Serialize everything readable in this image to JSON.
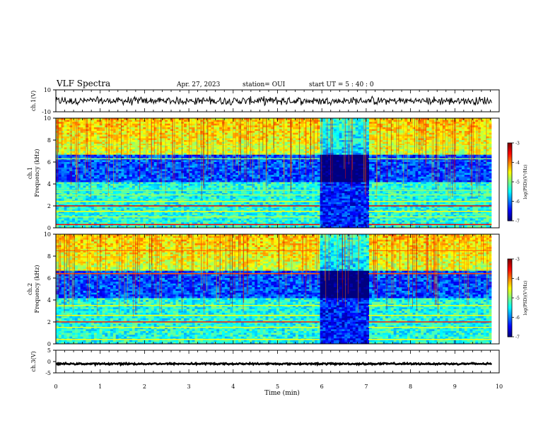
{
  "header": {
    "title": "VLF Spectra",
    "date": "Apr. 27, 2023",
    "station": "station= OUI",
    "start": "start  UT  =   5  : 40 : 0"
  },
  "chart_data": [
    {
      "type": "line",
      "name": "ch1-waveform",
      "ylabel": "ch.1(V)",
      "ylim": [
        -10,
        10
      ],
      "y_ticks": [
        "10",
        "-10"
      ],
      "xlim": [
        0,
        10
      ],
      "x_end": 9.83,
      "baseline": 0,
      "amplitude": 3
    },
    {
      "type": "heatmap",
      "name": "ch1-spectrogram",
      "ylabel": "ch.1\nFrequency (kHz)",
      "ylim": [
        0,
        10
      ],
      "y_ticks": [
        "0",
        "2",
        "4",
        "6",
        "8",
        "10"
      ],
      "xlim": [
        0,
        10
      ],
      "x_end": 9.83,
      "colorbar": {
        "label": "log(PSD)(V²/Hz)",
        "ticks": [
          "-3",
          "-4",
          "-5",
          "-6",
          "-7"
        ],
        "range": [
          -7,
          -3
        ]
      },
      "gap": [
        5.95,
        7.05
      ],
      "bands": [
        {
          "f": 0.3,
          "level": -3.5
        },
        {
          "f": 1.0,
          "level": -4.8
        },
        {
          "f": 1.5,
          "level": -4.5
        },
        {
          "f": 2.0,
          "level": -3.4
        },
        {
          "f": 2.4,
          "level": -4.6
        },
        {
          "f": 3.0,
          "level": -4.9
        },
        {
          "f": 3.4,
          "level": -5.0
        },
        {
          "f": 6.3,
          "level": -5.0
        },
        {
          "f": 7.5,
          "level": -4.8
        }
      ]
    },
    {
      "type": "heatmap",
      "name": "ch2-spectrogram",
      "ylabel": "ch.2\nFrequency (kHz)",
      "ylim": [
        0,
        10
      ],
      "y_ticks": [
        "0",
        "2",
        "4",
        "6",
        "8",
        "10"
      ],
      "xlim": [
        0,
        10
      ],
      "x_end": 9.83,
      "colorbar": {
        "label": "log(PSD)(V²/Hz)",
        "ticks": [
          "-3",
          "-4",
          "-5",
          "-6",
          "-7"
        ],
        "range": [
          -7,
          -3
        ]
      },
      "gap": [
        5.95,
        7.05
      ],
      "bands": [
        {
          "f": 0.4,
          "level": -4.5
        },
        {
          "f": 1.5,
          "level": -4.6
        },
        {
          "f": 2.0,
          "level": -3.6
        },
        {
          "f": 2.6,
          "level": -4.5
        },
        {
          "f": 3.5,
          "level": -4.6
        },
        {
          "f": 6.4,
          "level": -3.8
        },
        {
          "f": 8.5,
          "level": -4.0
        }
      ]
    },
    {
      "type": "line",
      "name": "ch3-waveform",
      "ylabel": "ch.3(V)",
      "ylim": [
        -5,
        5
      ],
      "y_ticks": [
        "5",
        "0",
        "-5"
      ],
      "xlim": [
        0,
        10
      ],
      "x_end": 9.83,
      "baseline": -1,
      "amplitude": 0.3
    }
  ],
  "x_axis": {
    "label": "Time  (min)",
    "ticks": [
      "0",
      "1",
      "2",
      "3",
      "4",
      "5",
      "6",
      "7",
      "8",
      "9",
      "10"
    ]
  }
}
